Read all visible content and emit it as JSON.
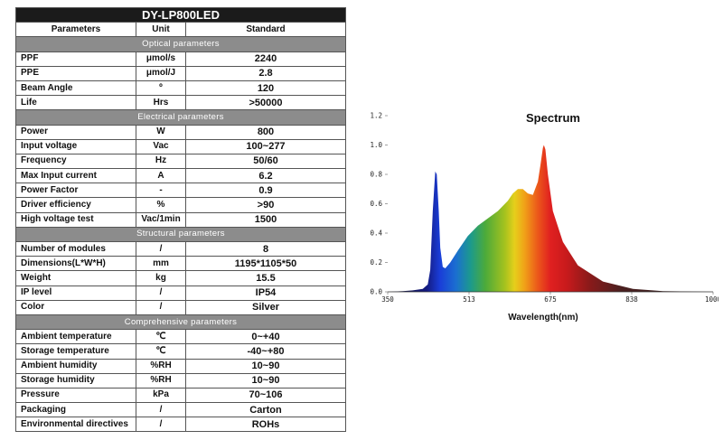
{
  "table": {
    "title": "DY-LP800LED",
    "headers": [
      "Parameters",
      "Unit",
      "Standard"
    ],
    "sections": [
      {
        "name": "Optical parameters",
        "rows": [
          [
            "PPF",
            "μmol/s",
            "2240"
          ],
          [
            "PPE",
            "μmol/J",
            "2.8"
          ],
          [
            "Beam Angle",
            "º",
            "120"
          ],
          [
            "Life",
            "Hrs",
            ">50000"
          ]
        ]
      },
      {
        "name": "Electrical parameters",
        "rows": [
          [
            "Power",
            "W",
            "800"
          ],
          [
            "Input voltage",
            "Vac",
            "100~277"
          ],
          [
            "Frequency",
            "Hz",
            "50/60"
          ],
          [
            "Max Input current",
            "A",
            "6.2"
          ],
          [
            "Power Factor",
            "-",
            "0.9"
          ],
          [
            "Driver efficiency",
            "%",
            ">90"
          ],
          [
            "High voltage test",
            "Vac/1min",
            "1500"
          ]
        ]
      },
      {
        "name": "Structural parameters",
        "rows": [
          [
            "Number of modules",
            "/",
            "8"
          ],
          [
            "Dimensions(L*W*H)",
            "mm",
            "1195*1105*50"
          ],
          [
            "Weight",
            "kg",
            "15.5"
          ],
          [
            "IP level",
            "/",
            "IP54"
          ],
          [
            "Color",
            "/",
            "Silver"
          ]
        ]
      },
      {
        "name": "Comprehensive parameters",
        "rows": [
          [
            "Ambient temperature",
            "℃",
            "0~+40"
          ],
          [
            "Storage temperature",
            "℃",
            "-40~+80"
          ],
          [
            "Ambient humidity",
            "%RH",
            "10~90"
          ],
          [
            "Storage humidity",
            "%RH",
            "10~90"
          ],
          [
            "Pressure",
            "kPa",
            "70~106"
          ],
          [
            "Packaging",
            "/",
            "Carton"
          ],
          [
            "Environmental directives",
            "/",
            "ROHs"
          ]
        ]
      }
    ]
  },
  "chart_data": {
    "type": "area",
    "title": "Spectrum",
    "xlabel": "Wavelength(nm)",
    "ylabel": "",
    "xlim": [
      350,
      1000
    ],
    "ylim": [
      0,
      1.2
    ],
    "x_ticks": [
      "350",
      "513",
      "675",
      "838",
      "1000"
    ],
    "y_ticks": [
      "0.0",
      "0.2",
      "0.4",
      "0.6",
      "0.8",
      "1.0",
      "1.2"
    ],
    "grid": false,
    "x": [
      350,
      380,
      400,
      420,
      430,
      435,
      440,
      445,
      448,
      452,
      455,
      460,
      465,
      475,
      490,
      510,
      530,
      550,
      570,
      590,
      600,
      610,
      620,
      630,
      640,
      650,
      655,
      660,
      662,
      665,
      670,
      680,
      700,
      730,
      780,
      840,
      900,
      1000
    ],
    "values": [
      0.0,
      0.005,
      0.01,
      0.02,
      0.05,
      0.15,
      0.55,
      0.82,
      0.8,
      0.55,
      0.3,
      0.17,
      0.16,
      0.2,
      0.28,
      0.38,
      0.45,
      0.5,
      0.55,
      0.62,
      0.67,
      0.7,
      0.7,
      0.67,
      0.66,
      0.75,
      0.86,
      0.98,
      1.0,
      0.97,
      0.8,
      0.55,
      0.34,
      0.18,
      0.07,
      0.02,
      0.005,
      0.0
    ]
  }
}
